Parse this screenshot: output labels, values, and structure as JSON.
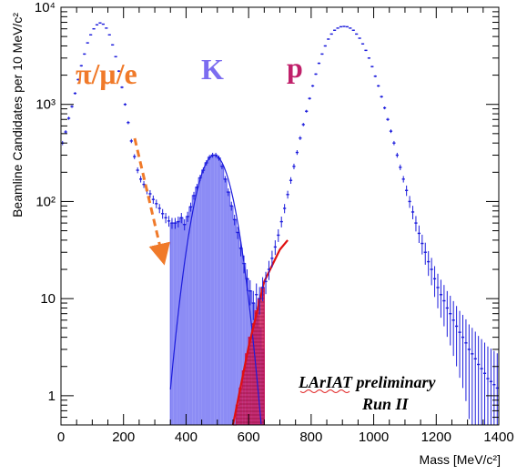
{
  "chart_data": {
    "type": "histogram",
    "title": "",
    "xlabel": "Mass [MeV/c²]",
    "ylabel": "Beamline Candidates per 10 MeV/c²",
    "xlim": [
      0,
      1400
    ],
    "ylim": [
      0.5,
      10000
    ],
    "log_y": true,
    "grid": false,
    "x_ticks": [
      "0",
      "200",
      "400",
      "600",
      "800",
      "1000",
      "1200",
      "1400"
    ],
    "y_ticks": [
      {
        "value": 1,
        "label": "1"
      },
      {
        "value": 10,
        "label": "10"
      },
      {
        "value": 100,
        "label": "10²"
      },
      {
        "value": 1000,
        "label": "10³"
      },
      {
        "value": 10000,
        "label": "10⁴"
      }
    ],
    "labels": {
      "pion": {
        "text": "π/μ/e",
        "color": "#f07a2a"
      },
      "kaon": {
        "text": "K",
        "color": "#7b6cf0"
      },
      "proton": {
        "text": "p",
        "color": "#c0206a"
      }
    },
    "annotation": {
      "line1": "LArIAT preliminary",
      "line2": "Run II"
    },
    "series": [
      {
        "name": "all beamline candidates",
        "style": "points-with-errors",
        "color": "#1c1cdc",
        "points": [
          [
            5,
            400
          ],
          [
            15,
            520
          ],
          [
            25,
            720
          ],
          [
            35,
            950
          ],
          [
            45,
            1300
          ],
          [
            55,
            1800
          ],
          [
            65,
            2500
          ],
          [
            75,
            3300
          ],
          [
            85,
            4300
          ],
          [
            95,
            5200
          ],
          [
            105,
            6000
          ],
          [
            115,
            6600
          ],
          [
            125,
            6900
          ],
          [
            135,
            6700
          ],
          [
            145,
            6100
          ],
          [
            155,
            5200
          ],
          [
            165,
            4100
          ],
          [
            175,
            3100
          ],
          [
            185,
            2200
          ],
          [
            195,
            1500
          ],
          [
            205,
            1000
          ],
          [
            215,
            650
          ],
          [
            225,
            420
          ],
          [
            235,
            290
          ],
          [
            245,
            210
          ],
          [
            255,
            170
          ],
          [
            265,
            150
          ],
          [
            275,
            130
          ],
          [
            285,
            120
          ],
          [
            295,
            105
          ],
          [
            305,
            95
          ],
          [
            315,
            85
          ],
          [
            325,
            75
          ],
          [
            335,
            68
          ],
          [
            345,
            63
          ],
          [
            355,
            60
          ],
          [
            365,
            60
          ],
          [
            375,
            62
          ],
          [
            385,
            68
          ],
          [
            395,
            58
          ],
          [
            405,
            70
          ],
          [
            415,
            88
          ],
          [
            425,
            115
          ],
          [
            435,
            140
          ],
          [
            445,
            175
          ],
          [
            455,
            210
          ],
          [
            465,
            250
          ],
          [
            475,
            285
          ],
          [
            485,
            300
          ],
          [
            495,
            300
          ],
          [
            505,
            280
          ],
          [
            515,
            230
          ],
          [
            525,
            170
          ],
          [
            535,
            125
          ],
          [
            545,
            90
          ],
          [
            555,
            65
          ],
          [
            565,
            48
          ],
          [
            575,
            33
          ],
          [
            585,
            23
          ],
          [
            595,
            16
          ],
          [
            605,
            12
          ],
          [
            615,
            9
          ],
          [
            625,
            11
          ],
          [
            635,
            10
          ],
          [
            645,
            13
          ],
          [
            655,
            15
          ],
          [
            665,
            20
          ],
          [
            675,
            26
          ],
          [
            685,
            34
          ],
          [
            695,
            45
          ],
          [
            705,
            62
          ],
          [
            715,
            85
          ],
          [
            725,
            118
          ],
          [
            735,
            165
          ],
          [
            745,
            230
          ],
          [
            755,
            320
          ],
          [
            765,
            450
          ],
          [
            775,
            620
          ],
          [
            785,
            850
          ],
          [
            795,
            1150
          ],
          [
            805,
            1550
          ],
          [
            815,
            2050
          ],
          [
            825,
            2650
          ],
          [
            835,
            3300
          ],
          [
            845,
            4000
          ],
          [
            855,
            4700
          ],
          [
            865,
            5300
          ],
          [
            875,
            5800
          ],
          [
            885,
            6100
          ],
          [
            895,
            6300
          ],
          [
            905,
            6350
          ],
          [
            915,
            6300
          ],
          [
            925,
            6100
          ],
          [
            935,
            5800
          ],
          [
            945,
            5300
          ],
          [
            955,
            4800
          ],
          [
            965,
            4200
          ],
          [
            975,
            3600
          ],
          [
            985,
            3000
          ],
          [
            995,
            2450
          ],
          [
            1005,
            1950
          ],
          [
            1015,
            1550
          ],
          [
            1025,
            1200
          ],
          [
            1035,
            920
          ],
          [
            1045,
            700
          ],
          [
            1055,
            530
          ],
          [
            1065,
            400
          ],
          [
            1075,
            300
          ],
          [
            1085,
            225
          ],
          [
            1095,
            170
          ],
          [
            1105,
            130
          ],
          [
            1115,
            100
          ],
          [
            1125,
            78
          ],
          [
            1135,
            60
          ],
          [
            1145,
            47
          ],
          [
            1155,
            37
          ],
          [
            1165,
            30
          ],
          [
            1175,
            24
          ],
          [
            1185,
            20
          ],
          [
            1195,
            16
          ],
          [
            1205,
            13
          ],
          [
            1215,
            11
          ],
          [
            1225,
            9.5
          ],
          [
            1235,
            8
          ],
          [
            1245,
            7
          ],
          [
            1255,
            6
          ],
          [
            1265,
            5.2
          ],
          [
            1275,
            4.5
          ],
          [
            1285,
            4
          ],
          [
            1295,
            3.5
          ],
          [
            1305,
            3
          ],
          [
            1315,
            2.7
          ],
          [
            1325,
            2.4
          ],
          [
            1335,
            2.1
          ],
          [
            1345,
            1.9
          ],
          [
            1355,
            1.7
          ],
          [
            1365,
            1.5
          ],
          [
            1375,
            1.4
          ],
          [
            1385,
            1.3
          ],
          [
            1395,
            1.2
          ]
        ]
      },
      {
        "name": "kaon candidates",
        "style": "filled-histogram",
        "color": "#6f6ff2",
        "fill_opacity": 0.8,
        "bin_width": 10,
        "bins": [
          [
            350,
            60
          ],
          [
            360,
            60
          ],
          [
            370,
            62
          ],
          [
            380,
            68
          ],
          [
            390,
            58
          ],
          [
            400,
            70
          ],
          [
            410,
            88
          ],
          [
            420,
            115
          ],
          [
            430,
            140
          ],
          [
            440,
            175
          ],
          [
            450,
            210
          ],
          [
            460,
            250
          ],
          [
            470,
            285
          ],
          [
            480,
            300
          ],
          [
            490,
            300
          ],
          [
            500,
            280
          ],
          [
            510,
            230
          ],
          [
            520,
            170
          ],
          [
            530,
            125
          ],
          [
            540,
            90
          ],
          [
            550,
            65
          ],
          [
            560,
            48
          ],
          [
            570,
            33
          ],
          [
            580,
            23
          ],
          [
            590,
            16
          ],
          [
            600,
            12
          ],
          [
            610,
            9
          ],
          [
            620,
            7
          ],
          [
            630,
            5
          ],
          [
            640,
            3
          ]
        ]
      },
      {
        "name": "proton candidates",
        "style": "filled-histogram",
        "color": "#cc1a5a",
        "fill_opacity": 0.85,
        "bin_width": 10,
        "bins": [
          [
            550,
            0.5
          ],
          [
            560,
            0.8
          ],
          [
            570,
            1.2
          ],
          [
            580,
            1.8
          ],
          [
            590,
            2.7
          ],
          [
            600,
            4
          ],
          [
            610,
            5.5
          ],
          [
            620,
            7.5
          ],
          [
            630,
            10
          ],
          [
            640,
            13
          ]
        ]
      }
    ],
    "fit_curves": [
      {
        "name": "kaon fit",
        "color": "#1c1cdc",
        "x": [
          350,
          700
        ],
        "peak": 300,
        "mean": 490,
        "sigma": 42
      },
      {
        "name": "proton fit",
        "color": "#e01010",
        "points": [
          [
            550,
            0.5
          ],
          [
            600,
            3.2
          ],
          [
            650,
            15
          ],
          [
            700,
            32
          ],
          [
            725,
            40
          ]
        ]
      }
    ]
  }
}
